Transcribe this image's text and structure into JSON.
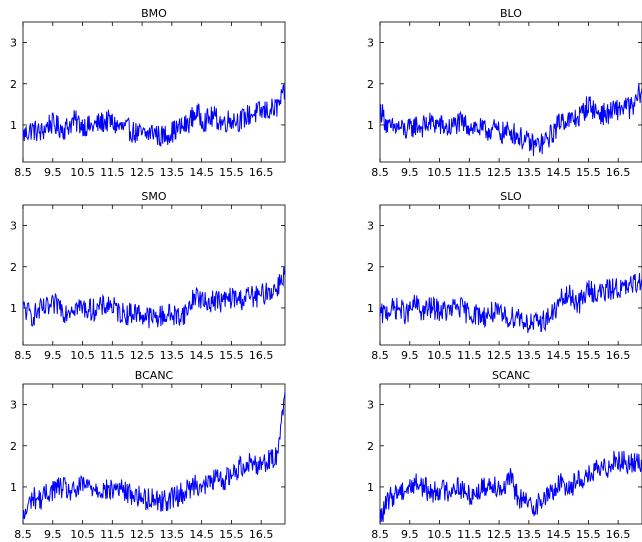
{
  "figure": {
    "line_color": "#0000ff",
    "axis_color": "#000000",
    "background": "#ffffff"
  },
  "chart_data": [
    {
      "type": "line",
      "title": "BMO",
      "xlim": [
        8.5,
        17.3
      ],
      "ylim": [
        0.1,
        3.5
      ],
      "xticks": [
        8.5,
        9.5,
        10.5,
        11.5,
        12.5,
        13.5,
        14.5,
        15.5,
        16.5
      ],
      "xtick_labels": [
        "8.5",
        "9.5",
        "10.5",
        "11.5",
        "12.5",
        "13.5",
        "14.5",
        "15.5",
        "16.5"
      ],
      "yticks": [
        1,
        2,
        3
      ],
      "ytick_labels": [
        "1",
        "2",
        "3"
      ],
      "series": [
        {
          "x": [
            8.5,
            8.8,
            9.1,
            9.4,
            9.7,
            9.9,
            10.2,
            10.5,
            10.8,
            11.1,
            11.4,
            11.7,
            12.0,
            12.3,
            12.6,
            12.9,
            13.1,
            13.4,
            13.7,
            14.0,
            14.3,
            14.6,
            14.9,
            15.2,
            15.5,
            15.8,
            16.1,
            16.4,
            16.7,
            17.0,
            17.3
          ],
          "values": [
            0.75,
            0.9,
            0.8,
            1.05,
            0.95,
            0.9,
            1.1,
            1.0,
            0.95,
            1.05,
            1.1,
            0.95,
            0.9,
            0.8,
            0.75,
            0.85,
            0.7,
            0.8,
            0.9,
            1.0,
            1.3,
            1.1,
            1.2,
            1.05,
            1.15,
            1.1,
            1.25,
            1.3,
            1.35,
            1.4,
            1.75
          ]
        }
      ]
    },
    {
      "type": "line",
      "title": "BLO",
      "xlim": [
        8.5,
        17.3
      ],
      "ylim": [
        0.1,
        3.5
      ],
      "xticks": [
        8.5,
        9.5,
        10.5,
        11.5,
        12.5,
        13.5,
        14.5,
        15.5,
        16.5
      ],
      "xtick_labels": [
        "8.5",
        "9.5",
        "10.5",
        "11.5",
        "12.5",
        "13.5",
        "14.5",
        "15.5",
        "16.5"
      ],
      "yticks": [
        1,
        2,
        3
      ],
      "ytick_labels": [
        "1",
        "2",
        "3"
      ],
      "series": [
        {
          "x": [
            8.5,
            8.8,
            9.1,
            9.4,
            9.7,
            9.9,
            10.2,
            10.5,
            10.8,
            11.1,
            11.4,
            11.7,
            12.0,
            12.3,
            12.6,
            12.9,
            13.1,
            13.4,
            13.7,
            14.0,
            14.3,
            14.6,
            14.9,
            15.2,
            15.5,
            15.8,
            16.1,
            16.4,
            16.7,
            17.0,
            17.3
          ],
          "values": [
            1.4,
            0.9,
            0.95,
            0.85,
            1.0,
            0.95,
            1.05,
            1.0,
            0.9,
            1.05,
            1.0,
            0.95,
            0.85,
            0.9,
            0.8,
            0.85,
            0.75,
            0.6,
            0.5,
            0.55,
            0.8,
            1.15,
            1.1,
            1.2,
            1.5,
            1.3,
            1.25,
            1.35,
            1.45,
            1.4,
            1.9
          ]
        }
      ]
    },
    {
      "type": "line",
      "title": "SMO",
      "xlim": [
        8.5,
        17.3
      ],
      "ylim": [
        0.1,
        3.5
      ],
      "xticks": [
        8.5,
        9.5,
        10.5,
        11.5,
        12.5,
        13.5,
        14.5,
        15.5,
        16.5
      ],
      "xtick_labels": [
        "8.5",
        "9.5",
        "10.5",
        "11.5",
        "12.5",
        "13.5",
        "14.5",
        "15.5",
        "16.5"
      ],
      "yticks": [
        1,
        2,
        3
      ],
      "ytick_labels": [
        "1",
        "2",
        "3"
      ],
      "series": [
        {
          "x": [
            8.5,
            8.8,
            9.1,
            9.4,
            9.7,
            9.9,
            10.2,
            10.5,
            10.8,
            11.1,
            11.4,
            11.7,
            12.0,
            12.3,
            12.6,
            12.9,
            13.1,
            13.4,
            13.7,
            14.0,
            14.3,
            14.6,
            14.9,
            15.2,
            15.5,
            15.8,
            16.1,
            16.4,
            16.7,
            17.0,
            17.3
          ],
          "values": [
            1.0,
            0.8,
            0.95,
            1.0,
            1.1,
            0.9,
            1.05,
            1.0,
            0.95,
            1.0,
            1.1,
            0.9,
            0.85,
            0.9,
            0.8,
            0.75,
            0.8,
            0.85,
            0.8,
            0.9,
            1.35,
            1.1,
            1.2,
            1.15,
            1.25,
            1.2,
            1.3,
            1.25,
            1.4,
            1.45,
            1.9
          ]
        }
      ]
    },
    {
      "type": "line",
      "title": "SLO",
      "xlim": [
        8.5,
        17.3
      ],
      "ylim": [
        0.1,
        3.5
      ],
      "xticks": [
        8.5,
        9.5,
        10.5,
        11.5,
        12.5,
        13.5,
        14.5,
        15.5,
        16.5
      ],
      "xtick_labels": [
        "8.5",
        "9.5",
        "10.5",
        "11.5",
        "12.5",
        "13.5",
        "14.5",
        "15.5",
        "16.5"
      ],
      "yticks": [
        1,
        2,
        3
      ],
      "ytick_labels": [
        "1",
        "2",
        "3"
      ],
      "series": [
        {
          "x": [
            8.5,
            8.8,
            9.1,
            9.4,
            9.7,
            9.9,
            10.2,
            10.5,
            10.8,
            11.1,
            11.4,
            11.7,
            12.0,
            12.3,
            12.6,
            12.9,
            13.1,
            13.4,
            13.7,
            14.0,
            14.3,
            14.6,
            14.9,
            15.2,
            15.5,
            15.8,
            16.1,
            16.4,
            16.7,
            17.0,
            17.3
          ],
          "values": [
            0.8,
            0.95,
            1.0,
            0.85,
            1.1,
            0.9,
            1.0,
            0.95,
            0.9,
            1.05,
            0.9,
            0.85,
            0.8,
            0.9,
            0.8,
            0.75,
            0.85,
            0.65,
            0.6,
            0.7,
            0.85,
            1.2,
            1.3,
            1.1,
            1.45,
            1.35,
            1.4,
            1.5,
            1.45,
            1.55,
            1.7
          ]
        }
      ]
    },
    {
      "type": "line",
      "title": "BCANC",
      "xlim": [
        8.5,
        17.3
      ],
      "ylim": [
        0.1,
        3.5
      ],
      "xticks": [
        8.5,
        9.5,
        10.5,
        11.5,
        12.5,
        13.5,
        14.5,
        15.5,
        16.5
      ],
      "xtick_labels": [
        "8.5",
        "9.5",
        "10.5",
        "11.5",
        "12.5",
        "13.5",
        "14.5",
        "15.5",
        "16.5"
      ],
      "yticks": [
        1,
        2,
        3
      ],
      "ytick_labels": [
        "1",
        "2",
        "3"
      ],
      "series": [
        {
          "x": [
            8.5,
            8.8,
            9.1,
            9.4,
            9.7,
            9.9,
            10.2,
            10.5,
            10.8,
            11.1,
            11.4,
            11.7,
            12.0,
            12.3,
            12.6,
            12.9,
            13.1,
            13.4,
            13.7,
            14.0,
            14.3,
            14.6,
            14.9,
            15.2,
            15.5,
            15.8,
            16.1,
            16.4,
            16.7,
            17.0,
            17.3
          ],
          "values": [
            0.2,
            0.75,
            0.7,
            0.9,
            1.0,
            0.95,
            0.85,
            1.05,
            1.0,
            0.95,
            0.9,
            1.0,
            0.85,
            0.8,
            0.7,
            0.75,
            0.65,
            0.7,
            0.8,
            0.9,
            1.1,
            1.0,
            1.2,
            1.15,
            1.3,
            1.5,
            1.6,
            1.55,
            1.65,
            1.7,
            3.3
          ]
        }
      ]
    },
    {
      "type": "line",
      "title": "SCANC",
      "xlim": [
        8.5,
        17.3
      ],
      "ylim": [
        0.1,
        3.5
      ],
      "xticks": [
        8.5,
        9.5,
        10.5,
        11.5,
        12.5,
        13.5,
        14.5,
        15.5,
        16.5
      ],
      "xtick_labels": [
        "8.5",
        "9.5",
        "10.5",
        "11.5",
        "12.5",
        "13.5",
        "14.5",
        "15.5",
        "16.5"
      ],
      "yticks": [
        1,
        2,
        3
      ],
      "ytick_labels": [
        "1",
        "2",
        "3"
      ],
      "series": [
        {
          "x": [
            8.5,
            8.8,
            9.1,
            9.4,
            9.7,
            9.9,
            10.2,
            10.5,
            10.8,
            11.1,
            11.4,
            11.7,
            12.0,
            12.3,
            12.6,
            12.9,
            13.1,
            13.4,
            13.7,
            14.0,
            14.3,
            14.6,
            14.9,
            15.2,
            15.5,
            15.8,
            16.1,
            16.4,
            16.7,
            17.0,
            17.3
          ],
          "values": [
            0.2,
            0.7,
            0.9,
            0.95,
            1.1,
            1.05,
            0.85,
            0.95,
            0.9,
            1.05,
            0.8,
            0.85,
            1.0,
            1.1,
            0.95,
            1.2,
            0.8,
            0.6,
            0.55,
            0.7,
            0.9,
            1.1,
            1.0,
            1.2,
            1.25,
            1.4,
            1.45,
            1.7,
            1.6,
            1.55,
            1.65
          ]
        }
      ]
    }
  ]
}
